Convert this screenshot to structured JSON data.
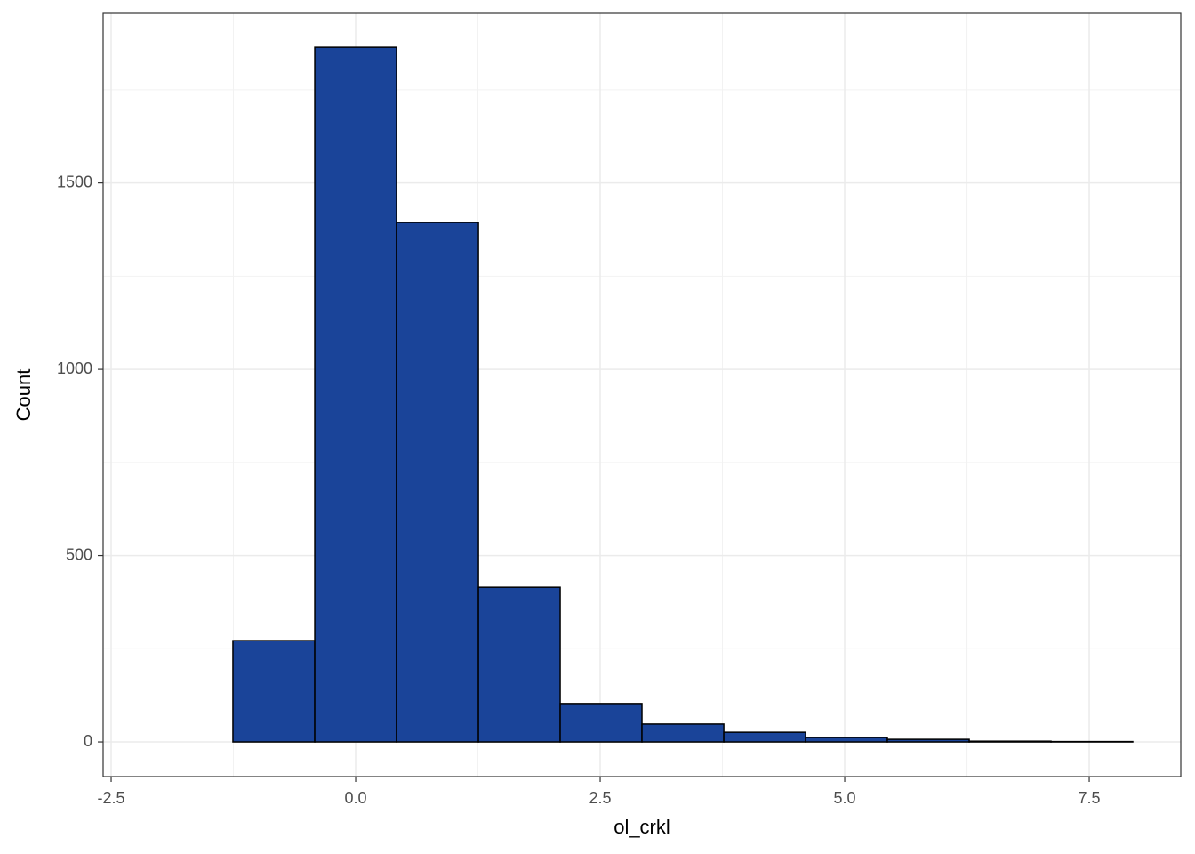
{
  "chart_data": {
    "type": "histogram",
    "x_label": "ol_crkl",
    "y_label": "Count",
    "bins": [
      -2.091,
      -1.255,
      -0.418,
      0.418,
      1.255,
      2.091,
      2.927,
      3.764,
      4.6,
      5.436,
      6.273,
      7.109,
      7.945
    ],
    "counts": [
      0,
      272,
      1864,
      1394,
      415,
      103,
      48,
      26,
      12,
      7,
      2,
      1
    ],
    "color": "#1a4499",
    "edge_color": "#000000",
    "xlim": [
      -2.582,
      8.436
    ],
    "ylim": [
      -93,
      1955
    ],
    "xticks": [
      -2.5,
      {
        "value": 0,
        "label": "0.0"
      },
      2.5,
      {
        "value": 5,
        "label": "5.0"
      },
      7.5
    ],
    "yticks": [
      0,
      500,
      1000,
      1500
    ],
    "x_minor_grid": [
      -1.25,
      1.25,
      3.75,
      6.25
    ],
    "y_minor_grid": [
      250,
      750,
      1250,
      1750
    ],
    "grid": true
  }
}
